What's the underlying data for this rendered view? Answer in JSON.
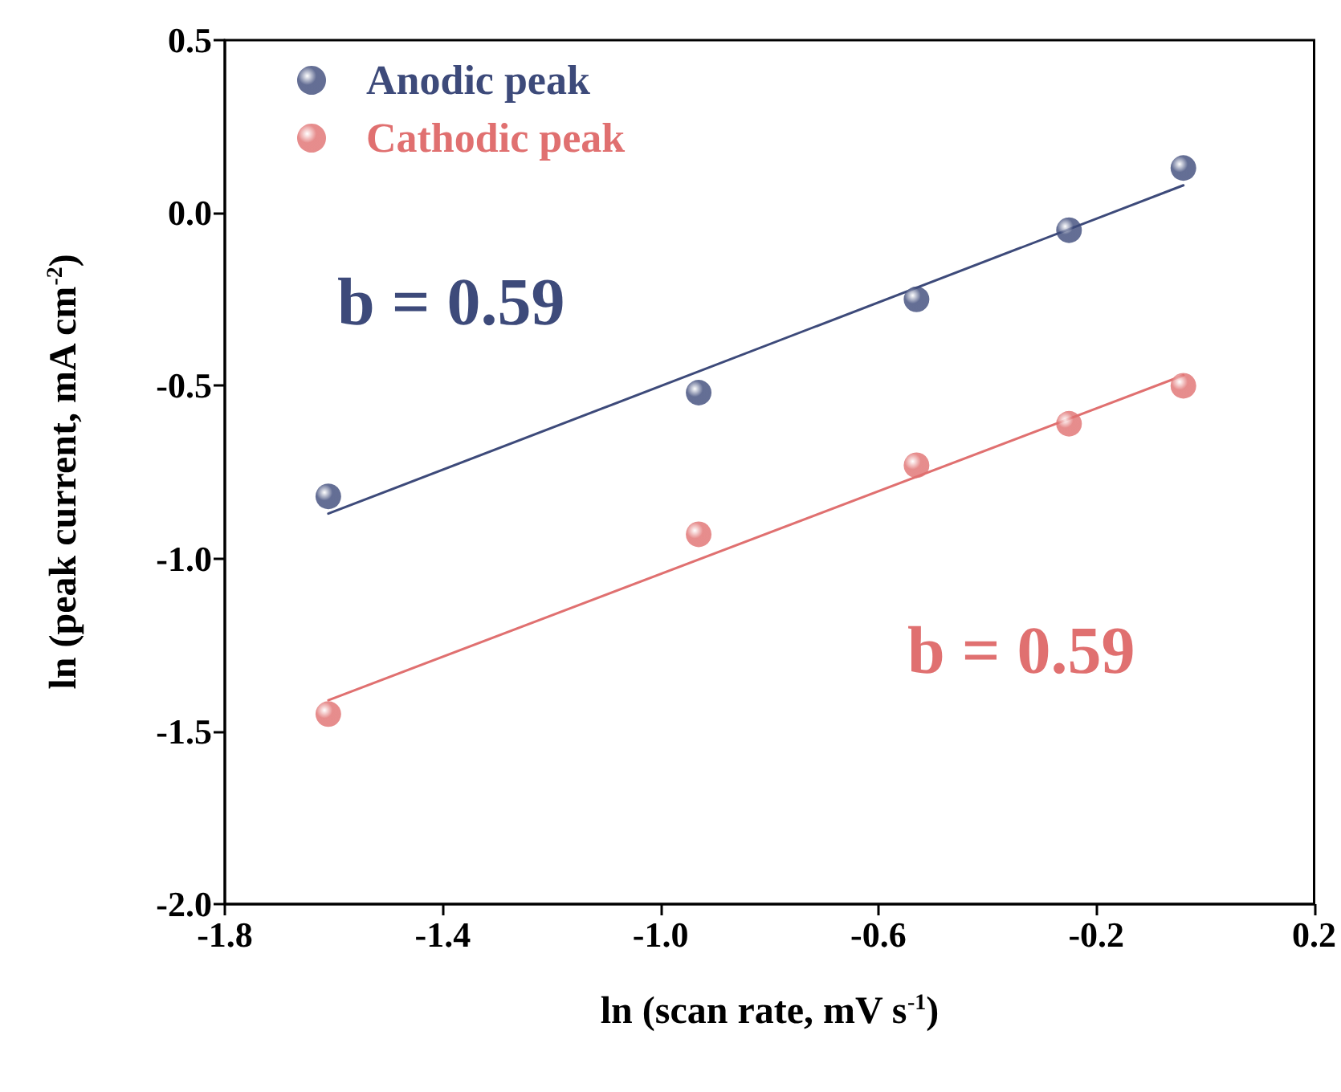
{
  "chart_data": {
    "type": "scatter",
    "xlabel": "ln (scan rate, mV s$^{-1}$)",
    "ylabel": "ln (peak current, mA cm$^{-2}$)",
    "series": [
      {
        "name": "Anodic peak",
        "color": "#3d4a7a",
        "x": [
          -1.61,
          -0.93,
          -0.53,
          -0.25,
          -0.04
        ],
        "values": [
          -0.82,
          -0.52,
          -0.25,
          -0.05,
          0.13
        ]
      },
      {
        "name": "Cathodic peak",
        "color": "#e07070",
        "x": [
          -1.61,
          -0.93,
          -0.53,
          -0.25,
          -0.04
        ],
        "values": [
          -1.45,
          -0.93,
          -0.73,
          -0.61,
          -0.5
        ]
      },
      {
        "type": "line",
        "marker": "none",
        "color": "#3d4a7a",
        "x": [
          -1.61,
          -0.04
        ],
        "values": [
          -0.87,
          0.08
        ]
      },
      {
        "type": "line",
        "marker": "none",
        "color": "#e07070",
        "x": [
          -1.61,
          -0.04
        ],
        "values": [
          -1.41,
          -0.47
        ]
      }
    ],
    "annotations": [
      "b = 0.59",
      "b = 0.59"
    ],
    "xlim": [
      -1.8,
      0.2
    ],
    "xticks": [
      -1.8,
      -1.4,
      {
        "value": -1.0,
        "label": "-1.0"
      },
      -0.6,
      -0.2,
      0.2
    ],
    "ylim": [
      -2.0,
      0.5
    ],
    "yticks": [
      {
        "value": -2.0,
        "label": "-2.0"
      },
      -1.5,
      {
        "value": -1.0,
        "label": "-1.0"
      },
      -0.5,
      {
        "value": 0.0,
        "label": "0.0"
      },
      0.5
    ],
    "marker": "circle",
    "legend": "top left",
    "grid": false
  }
}
